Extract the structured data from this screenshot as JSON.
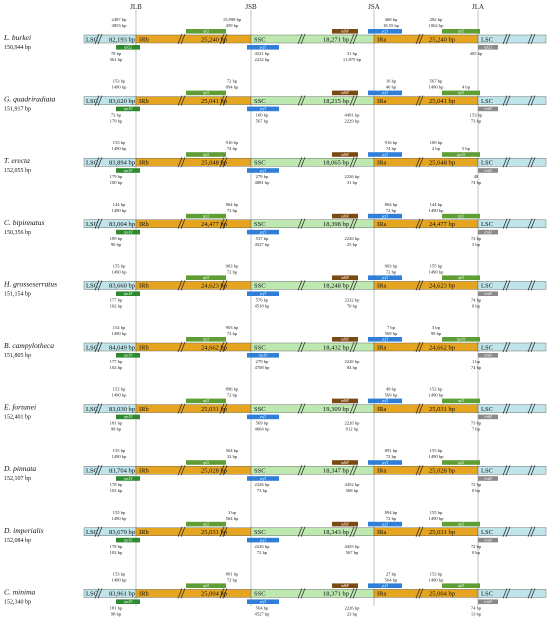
{
  "colors": {
    "lsc": "#bfe4e9",
    "irb": "#e6a520",
    "ssc": "#bde8b0",
    "ira": "#e6a520",
    "rps19": "#2f8a2f",
    "rpl2": "#5f9d35",
    "ndhF": "#7a4a12",
    "ycf1": "#2f7fd8",
    "trnH": "#8a8a8a",
    "rpl22": "#1fbfbf",
    "trnN": "#a8a8a8",
    "psbA": "#7f7f7f",
    "break": "#c0392b"
  },
  "junctions": [
    "JLB",
    "JSB",
    "JSA",
    "JLA"
  ],
  "species": [
    {
      "name": "L. burkei",
      "length": "150,944 bp",
      "lsc": "82,193 bp",
      "irb": "25,240 bp",
      "ssc": "18,271 bp",
      "ira": "25,240 bp",
      "genes": {
        "g1": "rpl22",
        "g2": "rpl2",
        "g3": "ycf1",
        "g4": "ndhF",
        "g5": "ycf1",
        "g6": "rpl2",
        "g7": "rpl22"
      },
      "ann": {
        "a1": "2487 bp",
        "a2": "4853 bp",
        "a3": "15,898 bp",
        "a4": "459 bp",
        "a5": "78 bp",
        "a6": "361 bp",
        "a7": "4521 bp",
        "a8": "2232 bp",
        "a9": "31 bp",
        "a10": "11,875 bp",
        "a11": "468 bp",
        "a12": "18,55 bp",
        "a13": "282 bp",
        "a14": "1062 bp",
        "a15": "405 bp"
      }
    },
    {
      "name": "G. quadriradiata",
      "length": "151,917 bp",
      "lsc": "83,620 bp",
      "irb": "25,041 bp",
      "ssc": "18,215 bp",
      "ira": "25,041 bp",
      "genes": {
        "g1": "rps19",
        "g2": "rpl2",
        "g3": "ycf1",
        "g4": "ndhF",
        "g5": "ycf1",
        "g6": "rpl2",
        "g7": "trnH"
      },
      "ann": {
        "a1": "153 bp",
        "a2": "1490 bp",
        "a3": "72 bp",
        "a4": "894 bp",
        "a5": "73 bp",
        "a6": "179 bp",
        "a7": "100 bp",
        "a8": "567 bp",
        "a9": "4491 bp",
        "a10": "2229 bp",
        "a11": "16 bp",
        "a12": "40 bp",
        "a13": "567 bp",
        "a14": "1490 bp",
        "a15": "153 bp",
        "a16": "73 bp",
        "a17": "4 bp"
      }
    },
    {
      "name": "T. erecta",
      "length": "152,055 bp",
      "lsc": "83,894 bp",
      "irb": "25,048 bp",
      "ssc": "18,065 bp",
      "ira": "25,048 bp",
      "genes": {
        "g1": "rps19",
        "g2": "rpl2",
        "g3": "ycf1",
        "g4": "ndhF",
        "g5": "ycf1",
        "g6": "rps19",
        "g7": "trnH"
      },
      "ann": {
        "a1": "155 bp",
        "a2": "1490 bp",
        "a3": "916 bp",
        "a4": "74 bp",
        "a5": "179 bp",
        "a6": "100 bp",
        "a7": "279 bp",
        "a8": "4881 bp",
        "a9": "2226 bp",
        "a10": "31 bp",
        "a11": "916 bp",
        "a12": "74 bp",
        "a13": "100 bp",
        "a14": "2 bp",
        "a15": "48",
        "a16": "74 bp",
        "a17": "5 bp"
      }
    },
    {
      "name": "C. bipinnatus",
      "length": "150,356 bp",
      "lsc": "83,004 bp",
      "irb": "24,477 bp",
      "ssc": "18,398 bp",
      "ira": "24,477 bp",
      "genes": {
        "g1": "rps19",
        "g2": "rpl2",
        "g3": "ycf1",
        "g4": "ndhF",
        "g5": "ycf1",
        "g6": "rpl2",
        "g7": "trnH"
      },
      "ann": {
        "a1": "144 bp",
        "a2": "1490 bp",
        "a3": "864 bp",
        "a4": "72 bp",
        "a5": "189 bp",
        "a6": "90 bp",
        "a7": "537 bp",
        "a8": "4527 bp",
        "a9": "2226 bp",
        "a10": "25 bp",
        "a11": "864 bp",
        "a12": "72 bp",
        "a13": "144 bp",
        "a14": "1490 bp",
        "a15": "72 bp",
        "a16": "3 bp"
      }
    },
    {
      "name": "H. grosseserratus",
      "length": "151,154 bp",
      "lsc": "83,660 bp",
      "irb": "24,623 bp",
      "ssc": "18,248 bp",
      "ira": "24,623 bp",
      "genes": {
        "g1": "rps19",
        "g2": "rpl2",
        "g3": "ycf1",
        "g4": "ndhF",
        "g5": "ycf1",
        "g6": "rpl2",
        "g7": "trnH"
      },
      "ann": {
        "a1": "155 bp",
        "a2": "1490 bp",
        "a3": "903 bp",
        "a4": "72 bp",
        "a5": "177 bp",
        "a6": "102 bp",
        "a7": "576 bp",
        "a8": "4518 bp",
        "a9": "2232 bp",
        "a10": "70 bp",
        "a11": "903 bp",
        "a12": "72 bp",
        "a13": "155 bp",
        "a14": "1490 bp",
        "a15": "74 bp",
        "a16": "0 bp"
      }
    },
    {
      "name": "B. campylotheca",
      "length": "151,805 bp",
      "lsc": "84,049 bp",
      "irb": "24,662 bp",
      "ssc": "18,432 bp",
      "ira": "24,662 bp",
      "genes": {
        "g1": "rps19",
        "g2": "rpl2",
        "g3": "rps19",
        "g4": "ndhF",
        "g5": "ycf1",
        "g6": "rps19",
        "g7": "trnH"
      },
      "ann": {
        "a1": "154 bp",
        "a2": "1490 bp",
        "a3": "903 bp",
        "a4": "72 bp",
        "a5": "177 bp",
        "a6": "102 bp",
        "a7": "279 bp",
        "a8": "4708 bp",
        "a9": "2226 bp",
        "a10": "84 bp",
        "a11": "7 bp",
        "a12": "569 bp",
        "a13": "3 bp",
        "a14": "99 bp",
        "a15": "1 bp",
        "a16": "74 bp"
      }
    },
    {
      "name": "E. fortunei",
      "length": "152,401 bp",
      "lsc": "83,030 bp",
      "irb": "25,031 bp",
      "ssc": "19,309 bp",
      "ira": "25,031 bp",
      "genes": {
        "g1": "rps19",
        "g2": "rpl2",
        "g3": "ycf1",
        "g4": "ndhF",
        "g5": "ycf1",
        "g6": "rpl2",
        "g7": "trnH"
      },
      "ann": {
        "a1": "152 bp",
        "a2": "1490 bp",
        "a3": "896 bp",
        "a4": "72 bp",
        "a5": "181 bp",
        "a6": "98 bp",
        "a7": "569 bp",
        "a8": "4664 bp",
        "a9": "2226 bp",
        "a10": "912 bp",
        "a11": "49 bp",
        "a12": "569 bp",
        "a13": "152 bp",
        "a14": "1490 bp",
        "a15": "73 bp",
        "a16": "7 bp"
      }
    },
    {
      "name": "D. pinnata",
      "length": "152,107 bp",
      "lsc": "83,704 bp",
      "irb": "25,028 bp",
      "ssc": "18,347 bp",
      "ira": "25,028 bp",
      "genes": {
        "g1": "rps19",
        "g2": "rpl2",
        "g3": "ycf1",
        "g4": "ndhF",
        "g5": "ycf1",
        "g6": "rpl2",
        "g7": "trnH"
      },
      "ann": {
        "a1": "155 bp",
        "a2": "1490 bp",
        "a3": "564 bp",
        "a4": "32 bp",
        "a5": "178 bp",
        "a6": "102 bp",
        "a7": "2226 bp",
        "a8": "73 bp",
        "a9": "4452 bp",
        "a10": "568 bp",
        "a11": "891 bp",
        "a12": "72 bp",
        "a13": "155 bp",
        "a14": "1490 bp",
        "a15": "72 bp",
        "a16": "0 bp"
      }
    },
    {
      "name": "D. imperialis",
      "length": "152,084 bp",
      "lsc": "83,679 bp",
      "irb": "25,031 bp",
      "ssc": "18,343 bp",
      "ira": "25,031 bp",
      "genes": {
        "g1": "rps19",
        "g2": "rpl2",
        "g3": "ycf1",
        "g4": "ndhF",
        "g5": "ycf1",
        "g6": "rpl2",
        "g7": "trnH"
      },
      "ann": {
        "a1": "155 bp",
        "a2": "1490 bp",
        "a3": "3 bp",
        "a4": "564 bp",
        "a5": "178 bp",
        "a6": "102 bp",
        "a7": "2226 bp",
        "a8": "72 bp",
        "a9": "4455 bp",
        "a10": "567 bp",
        "a11": "894 bp",
        "a12": "72 bp",
        "a13": "155 bp",
        "a14": "1490 bp",
        "a15": "72 bp",
        "a16": "0 bp"
      }
    },
    {
      "name": "C. minima",
      "length": "152,340 bp",
      "lsc": "83,961 bp",
      "irb": "25,004 bp",
      "ssc": "18,371 bp",
      "ira": "25,004 bp",
      "genes": {
        "g1": "rps19",
        "g2": "rpl2",
        "g3": "ycf1",
        "g4": "ndhF",
        "g5": "ycf1",
        "g6": "rpl2",
        "g7": "trnH"
      },
      "ann": {
        "a1": "153 bp",
        "a2": "1490 bp",
        "a3": "891 bp",
        "a4": "72 bp",
        "a5": "181 bp",
        "a6": "98 bp",
        "a7": "564 bp",
        "a8": "4527 bp",
        "a9": "2226 bp",
        "a10": "23 bp",
        "a11": "27 bp",
        "a12": "564 bp",
        "a13": "153 bp",
        "a14": "1490 bp",
        "a15": "74 bp",
        "a16": "13 bp"
      }
    }
  ]
}
